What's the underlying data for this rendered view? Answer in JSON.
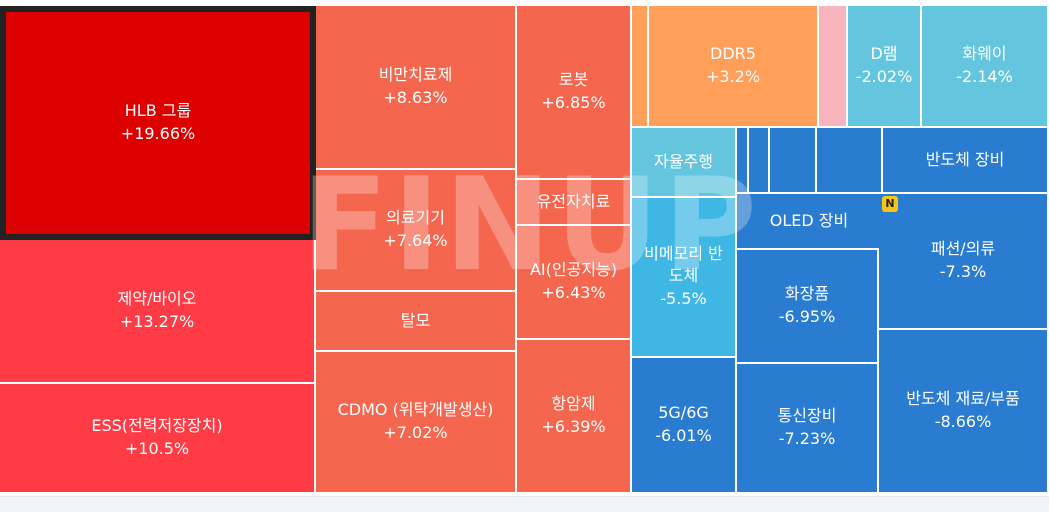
{
  "watermark": "FINUP",
  "new_badge": "N",
  "chart_data": {
    "type": "treemap",
    "tiles": [
      {
        "id": "hlb",
        "label": "HLB 그룹",
        "value": "+19.66%",
        "color": "#dd0000",
        "selected": true
      },
      {
        "id": "pharma",
        "label": "제약/바이오",
        "value": "+13.27%",
        "color": "#ff3b45"
      },
      {
        "id": "ess",
        "label": "ESS(전력저장장치)",
        "value": "+10.5%",
        "color": "#ff3b45"
      },
      {
        "id": "obesity",
        "label": "비만치료제",
        "value": "+8.63%",
        "color": "#f5664e"
      },
      {
        "id": "medical",
        "label": "의료기기",
        "value": "+7.64%",
        "color": "#f5664e"
      },
      {
        "id": "hairloss",
        "label": "탈모",
        "value": "",
        "color": "#f5664e"
      },
      {
        "id": "cdmo",
        "label": "CDMO (위탁개발생산)",
        "value": "+7.02%",
        "color": "#f5664e"
      },
      {
        "id": "robot",
        "label": "로봇",
        "value": "+6.85%",
        "color": "#f5664e"
      },
      {
        "id": "gene",
        "label": "유전자치료",
        "value": "",
        "color": "#f5664e"
      },
      {
        "id": "ai",
        "label": "AI(인공지능)",
        "value": "+6.43%",
        "color": "#f5664e"
      },
      {
        "id": "anticancer",
        "label": "항암제",
        "value": "+6.39%",
        "color": "#f5664e"
      },
      {
        "id": "small1",
        "label": "",
        "value": "",
        "color": "#ff9f5a"
      },
      {
        "id": "ddr5",
        "label": "DDR5",
        "value": "+3.2%",
        "color": "#ff9f5a"
      },
      {
        "id": "pink",
        "label": "",
        "value": "",
        "color": "#f8b4bc"
      },
      {
        "id": "dram",
        "label": "D램",
        "value": "-2.02%",
        "color": "#63c6de"
      },
      {
        "id": "huawei",
        "label": "화웨이",
        "value": "-2.14%",
        "color": "#63c6de"
      },
      {
        "id": "auto",
        "label": "자율주행",
        "value": "",
        "color": "#63c6de"
      },
      {
        "id": "nonmem",
        "label": "비메모리 반도체",
        "value": "-5.5%",
        "color": "#3fb7e5"
      },
      {
        "id": "s1",
        "label": "",
        "value": "",
        "color": "#2a7cd0"
      },
      {
        "id": "s2",
        "label": "",
        "value": "",
        "color": "#2a7cd0"
      },
      {
        "id": "s3",
        "label": "",
        "value": "",
        "color": "#2a7cd0"
      },
      {
        "id": "s4",
        "label": "",
        "value": "",
        "color": "#2a7cd0"
      },
      {
        "id": "s5",
        "label": "",
        "value": "",
        "color": "#2a7cd0"
      },
      {
        "id": "semi_equip",
        "label": "반도체 장비",
        "value": "",
        "color": "#2a7cd0"
      },
      {
        "id": "oled",
        "label": "OLED 장비",
        "value": "",
        "color": "#2a7cd0"
      },
      {
        "id": "fashion",
        "label": "패션/의류",
        "value": "-7.3%",
        "color": "#2a7cd0"
      },
      {
        "id": "cosmetics",
        "label": "화장품",
        "value": "-6.95%",
        "color": "#2a7cd0"
      },
      {
        "id": "g5",
        "label": "5G/6G",
        "value": "-6.01%",
        "color": "#2a7cd0"
      },
      {
        "id": "telecom",
        "label": "통신장비",
        "value": "-7.23%",
        "color": "#2a7cd0"
      },
      {
        "id": "semi_mat",
        "label": "반도체 재료/부품",
        "value": "-8.66%",
        "color": "#2a7cd0"
      }
    ]
  }
}
